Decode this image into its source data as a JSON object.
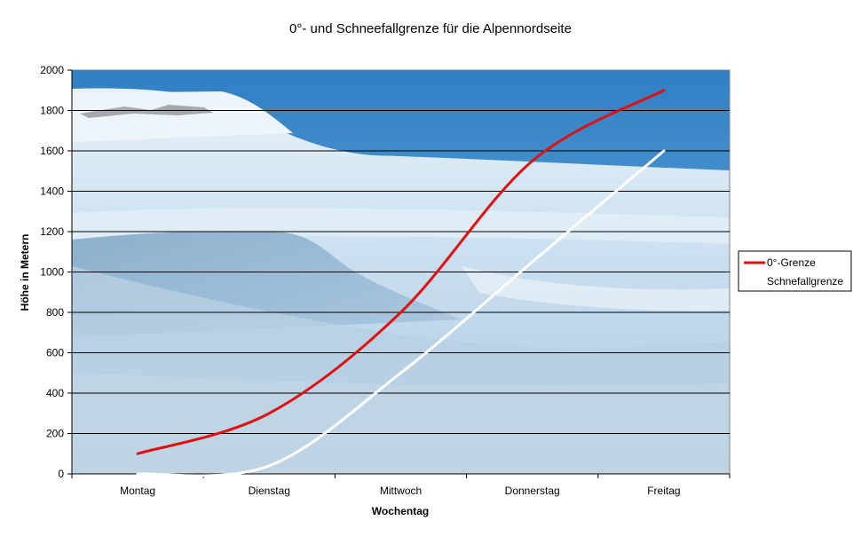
{
  "chart_data": {
    "type": "line",
    "title": "0°- und Schneefallgrenze für die Alpennordseite",
    "xlabel": "Wochentag",
    "ylabel": "Höhe in Metern",
    "categories": [
      "Montag",
      "Dienstag",
      "Mittwoch",
      "Donnerstag",
      "Freitag"
    ],
    "ylim": [
      0,
      2000
    ],
    "yticks": [
      0,
      200,
      400,
      600,
      800,
      1000,
      1200,
      1400,
      1600,
      1800,
      2000
    ],
    "grid": true,
    "legend_position": "right",
    "series": [
      {
        "name": "0°-Grenze",
        "color": "#e01010",
        "values": [
          100,
          300,
          800,
          1550,
          1900
        ]
      },
      {
        "name": "Schnefallgrenze",
        "color": "#ffffff",
        "values": [
          0,
          40,
          500,
          1050,
          1600
        ]
      }
    ]
  }
}
